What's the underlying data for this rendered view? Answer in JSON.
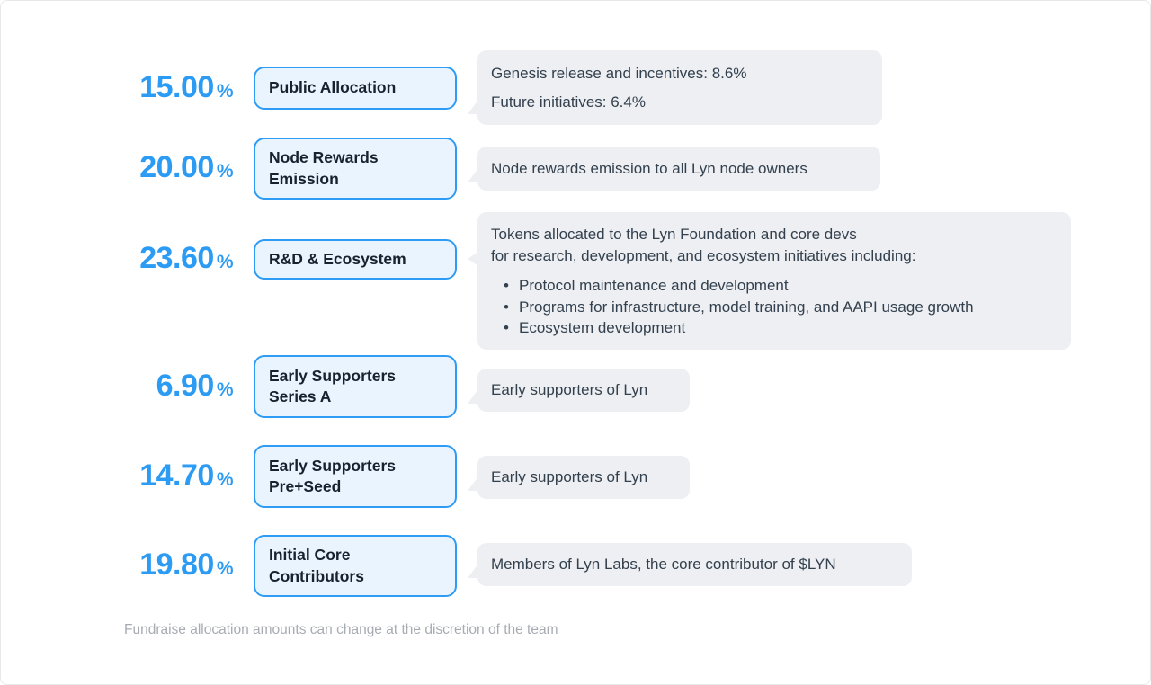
{
  "accent_color": "#2b9bf4",
  "chip_border_color": "#2e9cf4",
  "chip_bg_color": "#e9f4fe",
  "bubble_bg_color": "#edeff3",
  "rows": [
    {
      "percent": "15.00",
      "unit": "%",
      "label": "Public Allocation",
      "desc_lines": [
        "Genesis release and incentives: 8.6%",
        "Future initiatives: 6.4%"
      ]
    },
    {
      "percent": "20.00",
      "unit": "%",
      "label": "Node Rewards Emission",
      "desc_lines": [
        "Node rewards emission to all Lyn node owners"
      ]
    },
    {
      "percent": "23.60",
      "unit": "%",
      "label": "R&D & Ecosystem",
      "desc_lines": [
        "Tokens allocated to the Lyn Foundation and core devs",
        "for research, development, and ecosystem initiatives including:"
      ],
      "bullets": [
        "Protocol maintenance and development",
        "Programs for infrastructure, model training, and AAPI usage growth",
        "Ecosystem development"
      ]
    },
    {
      "percent": "6.90",
      "unit": "%",
      "label": "Early Supporters Series A",
      "desc_lines": [
        "Early supporters of Lyn"
      ]
    },
    {
      "percent": "14.70",
      "unit": "%",
      "label": "Early Supporters Pre+Seed",
      "desc_lines": [
        "Early supporters of Lyn"
      ]
    },
    {
      "percent": "19.80",
      "unit": "%",
      "label": "Initial Core Contributors",
      "desc_lines": [
        "Members of Lyn Labs, the core contributor of $LYN"
      ]
    }
  ],
  "footer": "Fundraise allocation amounts can change at the discretion of the team"
}
